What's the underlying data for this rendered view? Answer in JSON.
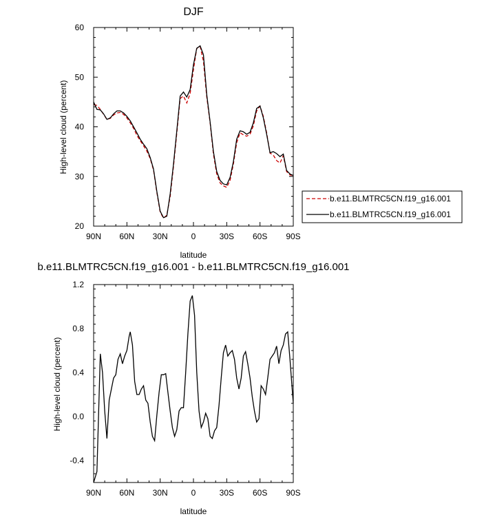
{
  "chart_data": [
    {
      "type": "line",
      "title": "DJF",
      "xlabel": "latitude",
      "ylabel": "High-level cloud (percent)",
      "xlim": [
        -90,
        90
      ],
      "ylim": [
        20,
        60
      ],
      "xtick_values": [
        -90,
        -60,
        -30,
        0,
        30,
        60,
        90
      ],
      "xtick_labels": [
        "90N",
        "60N",
        "30N",
        "0",
        "30S",
        "60S",
        "90S"
      ],
      "ytick_values": [
        20,
        30,
        40,
        50,
        60
      ],
      "ytick_labels": [
        "20",
        "30",
        "40",
        "50",
        "60"
      ],
      "legend_position": "right",
      "series": [
        {
          "name": "b.e11.BLMTRC5CN.f19_g16.001",
          "color": "#cc0000",
          "style": "dashed",
          "x": [
            -90,
            -87,
            -84,
            -81,
            -78,
            -75,
            -72,
            -69,
            -66,
            -63,
            -60,
            -57,
            -54,
            -51,
            -48,
            -45,
            -42,
            -39,
            -36,
            -33,
            -30,
            -27,
            -24,
            -21,
            -18,
            -15,
            -12,
            -9,
            -6,
            -3,
            0,
            3,
            6,
            9,
            12,
            15,
            18,
            21,
            24,
            27,
            30,
            33,
            36,
            39,
            42,
            45,
            48,
            51,
            54,
            57,
            60,
            63,
            66,
            69,
            72,
            75,
            78,
            81,
            84,
            87,
            90
          ],
          "y": [
            44.5,
            44.3,
            43.5,
            42.5,
            41.5,
            41.7,
            42.4,
            42.8,
            42.9,
            42.5,
            41.8,
            40.8,
            39.7,
            38.3,
            37.2,
            36.2,
            35.1,
            33.6,
            31.3,
            26.8,
            22.8,
            21.6,
            22.2,
            26,
            32,
            38.7,
            45.7,
            46.2,
            44.8,
            46.7,
            51.5,
            55.8,
            56.2,
            53.2,
            46,
            40.8,
            34.5,
            30.5,
            28.7,
            28.1,
            27.8,
            29.2,
            32.5,
            36.8,
            38.8,
            38.4,
            38.1,
            38.5,
            40.2,
            43.2,
            44.2,
            42.1,
            38.8,
            34.7,
            34.3,
            33.2,
            32.7,
            34.2,
            31,
            30.3,
            30.2
          ]
        },
        {
          "name": "b.e11.BLMTRC5CN.f19_g16.001",
          "color": "#000000",
          "style": "solid",
          "x": [
            -90,
            -87,
            -84,
            -81,
            -78,
            -75,
            -72,
            -69,
            -66,
            -63,
            -60,
            -57,
            -54,
            -51,
            -48,
            -45,
            -42,
            -39,
            -36,
            -33,
            -30,
            -27,
            -24,
            -21,
            -18,
            -15,
            -12,
            -9,
            -6,
            -3,
            0,
            3,
            6,
            9,
            12,
            15,
            18,
            21,
            24,
            27,
            30,
            33,
            36,
            39,
            42,
            45,
            48,
            51,
            54,
            57,
            60,
            63,
            66,
            69,
            72,
            75,
            78,
            81,
            84,
            87,
            90
          ],
          "y": [
            45,
            43.5,
            43.4,
            42.6,
            41.5,
            41.8,
            42.6,
            43.2,
            43.2,
            42.8,
            42.1,
            41.2,
            40,
            38.8,
            37.5,
            36.5,
            35.6,
            33.8,
            31.5,
            27,
            23,
            21.7,
            22,
            26.5,
            32.5,
            39.2,
            46.2,
            47,
            46,
            47.5,
            52.5,
            55.8,
            56.3,
            54.5,
            46.5,
            41,
            35,
            31,
            29.2,
            28.5,
            28.3,
            29.8,
            33,
            37.5,
            39.2,
            39,
            38.5,
            38.9,
            40.8,
            43.7,
            44.2,
            41.8,
            38.5,
            34.8,
            35,
            34.6,
            34,
            34.5,
            31.2,
            30.5,
            30.2
          ]
        }
      ]
    },
    {
      "type": "line",
      "title": "b.e11.BLMTRC5CN.f19_g16.001 - b.e11.BLMTRC5CN.f19_g16.001",
      "xlabel": "latitude",
      "ylabel": "High-level cloud (percent)",
      "xlim": [
        -90,
        90
      ],
      "ylim": [
        -0.6,
        1.2
      ],
      "xtick_values": [
        -90,
        -60,
        -30,
        0,
        30,
        60,
        90
      ],
      "xtick_labels": [
        "90N",
        "60N",
        "30N",
        "0",
        "30S",
        "60S",
        "90S"
      ],
      "ytick_values": [
        -0.4,
        0,
        0.4,
        0.8,
        1.2
      ],
      "ytick_labels": [
        "-0.4",
        "0.0",
        "0.4",
        "0.8",
        "1.2"
      ],
      "series": [
        {
          "color": "#000000",
          "style": "solid",
          "x": [
            -90,
            -87,
            -84,
            -82,
            -80,
            -78,
            -76,
            -74,
            -72,
            -70,
            -68,
            -66,
            -64,
            -62,
            -60,
            -58,
            -57,
            -55,
            -53,
            -51,
            -49,
            -47,
            -45,
            -43,
            -41,
            -39,
            -37,
            -35,
            -33,
            -31,
            -29,
            -27,
            -25,
            -23,
            -21,
            -19,
            -17,
            -15,
            -13,
            -11,
            -9,
            -7,
            -5,
            -3,
            -1,
            1,
            3,
            5,
            7,
            9,
            11,
            13,
            15,
            17,
            19,
            21,
            23,
            25,
            27,
            29,
            31,
            33,
            35,
            37,
            39,
            41,
            43,
            45,
            47,
            49,
            51,
            53,
            55,
            57,
            59,
            61,
            63,
            65,
            67,
            69,
            71,
            73,
            75,
            77,
            79,
            81,
            83,
            85,
            87,
            89,
            90
          ],
          "y": [
            -0.6,
            -0.5,
            0.57,
            0.4,
            0.05,
            -0.2,
            0.15,
            0.25,
            0.35,
            0.38,
            0.52,
            0.57,
            0.48,
            0.55,
            0.6,
            0.73,
            0.77,
            0.65,
            0.32,
            0.2,
            0.2,
            0.25,
            0.28,
            0.15,
            0.12,
            -0.05,
            -0.18,
            -0.22,
            0.01,
            0.22,
            0.38,
            0.38,
            0.39,
            0.22,
            0.05,
            -0.1,
            -0.18,
            -0.12,
            0.05,
            0.08,
            0.08,
            0.4,
            0.75,
            1.05,
            1.1,
            0.92,
            0.4,
            0.05,
            -0.1,
            -0.05,
            0.03,
            -0.02,
            -0.18,
            -0.2,
            -0.13,
            -0.1,
            0.1,
            0.35,
            0.58,
            0.65,
            0.55,
            0.58,
            0.6,
            0.52,
            0.35,
            0.25,
            0.35,
            0.55,
            0.59,
            0.48,
            0.35,
            0.18,
            0.05,
            -0.05,
            -0.02,
            0.28,
            0.25,
            0.2,
            0.35,
            0.52,
            0.55,
            0.58,
            0.64,
            0.48,
            0.6,
            0.65,
            0.75,
            0.77,
            0.52,
            0.25,
            0.12
          ]
        }
      ]
    }
  ]
}
